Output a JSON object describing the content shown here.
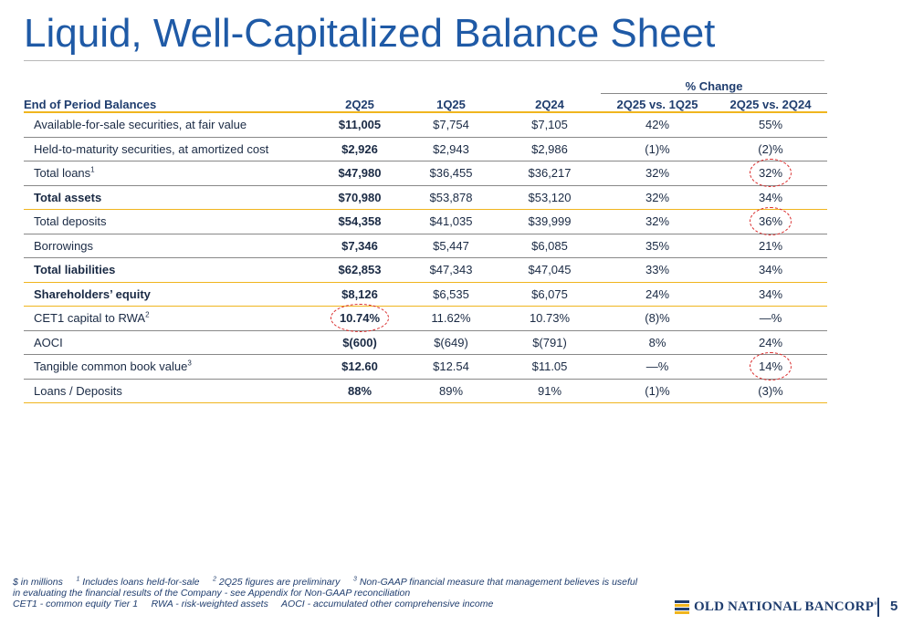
{
  "title": "Liquid, Well-Capitalized Balance Sheet",
  "table": {
    "pct_group_label": "% Change",
    "headers": [
      "End of Period Balances",
      "2Q25",
      "1Q25",
      "2Q24",
      "2Q25 vs. 1Q25",
      "2Q25 vs. 2Q24"
    ],
    "rows": [
      {
        "label": "Available-for-sale securities, at fair value",
        "sup": "",
        "values": [
          "$11,005",
          "$7,754",
          "$7,105",
          "42%",
          "55%"
        ]
      },
      {
        "label": "Held-to-maturity securities, at amortized cost",
        "sup": "",
        "values": [
          "$2,926",
          "$2,943",
          "$2,986",
          "(1)%",
          "(2)%"
        ]
      },
      {
        "label": "Total loans",
        "sup": "1",
        "values": [
          "$47,980",
          "$36,455",
          "$36,217",
          "32%",
          "32%"
        ]
      },
      {
        "label": "Total assets",
        "sup": "",
        "values": [
          "$70,980",
          "$53,878",
          "$53,120",
          "32%",
          "34%"
        ]
      },
      {
        "label": "Total deposits",
        "sup": "",
        "values": [
          "$54,358",
          "$41,035",
          "$39,999",
          "32%",
          "36%"
        ]
      },
      {
        "label": "Borrowings",
        "sup": "",
        "values": [
          "$7,346",
          "$5,447",
          "$6,085",
          "35%",
          "21%"
        ]
      },
      {
        "label": "Total liabilities",
        "sup": "",
        "values": [
          "$62,853",
          "$47,343",
          "$47,045",
          "33%",
          "34%"
        ]
      },
      {
        "label": "Shareholders’ equity",
        "sup": "",
        "values": [
          "$8,126",
          "$6,535",
          "$6,075",
          "24%",
          "34%"
        ]
      },
      {
        "label": "CET1 capital to RWA",
        "sup": "2",
        "values": [
          "10.74%",
          "11.62%",
          "10.73%",
          "(8)%",
          "—%"
        ]
      },
      {
        "label": "AOCI",
        "sup": "",
        "values": [
          "$(600)",
          "$(649)",
          "$(791)",
          "8%",
          "24%"
        ]
      },
      {
        "label": "Tangible common book value",
        "sup": "3",
        "values": [
          "$12.60",
          "$12.54",
          "$11.05",
          "—%",
          "14%"
        ]
      },
      {
        "label": "Loans / Deposits",
        "sup": "",
        "values": [
          "88%",
          "89%",
          "91%",
          "(1)%",
          "(3)%"
        ]
      }
    ]
  },
  "footnotes": {
    "units": "$ in millions",
    "fn1_num": "1",
    "fn1": "Includes loans held-for-sale",
    "fn2_num": "2",
    "fn2": "2Q25 figures are preliminary",
    "fn3_num": "3",
    "fn3_a": "Non-GAAP financial measure that management believes is useful",
    "fn3_b": "in evaluating the financial results of the Company - see Appendix for Non-GAAP reconciliation",
    "abbr1": "CET1 - common equity Tier 1",
    "abbr2": "RWA - risk-weighted assets",
    "abbr3": "AOCI - accumulated other comprehensive income"
  },
  "logo_text": "OLD NATIONAL BANCORP",
  "logo_mark": "®",
  "logo_colors": [
    "#1f3d6e",
    "#f0b51e"
  ],
  "page_number": "5",
  "colors": {
    "title": "#1f5aa6",
    "rule_gold": "#f0b51e",
    "annotation_red": "#d92a2a"
  }
}
